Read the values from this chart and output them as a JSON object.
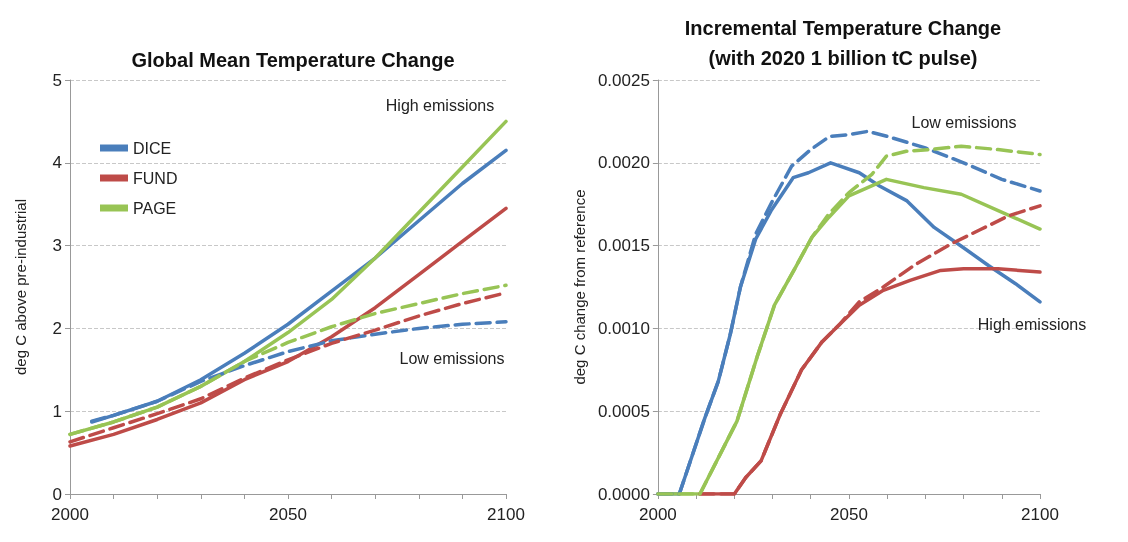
{
  "chart_data": [
    {
      "type": "line",
      "title": "Global Mean Temperature Change",
      "ylabel": "deg C above pre-industrial",
      "xlim": [
        2000,
        2100
      ],
      "xticks": [
        2000,
        {
          "value": 2010,
          "label": null
        },
        {
          "value": 2020,
          "label": null
        },
        {
          "value": 2030,
          "label": null
        },
        {
          "value": 2040,
          "label": null
        },
        2050,
        {
          "value": 2060,
          "label": null
        },
        {
          "value": 2070,
          "label": null
        },
        {
          "value": 2080,
          "label": null
        },
        {
          "value": 2090,
          "label": null
        },
        2100
      ],
      "ylim": [
        0,
        5
      ],
      "yticks": [
        0,
        1,
        2,
        3,
        4,
        5
      ],
      "grid": "y",
      "legend": "top left",
      "marker": "none",
      "annotations": [
        "High emissions",
        "Low emissions"
      ],
      "series": [
        {
          "name": "DICE",
          "color": "#4a7ebb",
          "line_style": "solid",
          "x": [
            2005,
            2010,
            2020,
            2030,
            2040,
            2050,
            2060,
            2070,
            2080,
            2090,
            2100
          ],
          "values": [
            0.87,
            0.95,
            1.12,
            1.38,
            1.7,
            2.05,
            2.45,
            2.85,
            3.3,
            3.75,
            4.15
          ]
        },
        {
          "name": "FUND",
          "color": "#be4b48",
          "line_style": "solid",
          "x": [
            2000,
            2010,
            2020,
            2030,
            2040,
            2050,
            2060,
            2070,
            2080,
            2090,
            2100
          ],
          "values": [
            0.58,
            0.72,
            0.9,
            1.1,
            1.38,
            1.6,
            1.9,
            2.25,
            2.65,
            3.05,
            3.45
          ]
        },
        {
          "name": "PAGE",
          "color": "#98c455",
          "line_style": "solid",
          "x": [
            2000,
            2010,
            2020,
            2030,
            2040,
            2050,
            2060,
            2070,
            2080,
            2090,
            2100
          ],
          "values": [
            0.72,
            0.87,
            1.05,
            1.3,
            1.6,
            1.95,
            2.35,
            2.85,
            3.4,
            3.95,
            4.5
          ]
        },
        {
          "color": "#4a7ebb",
          "line_style": "dashed",
          "x": [
            2005,
            2010,
            2020,
            2030,
            2040,
            2050,
            2060,
            2070,
            2080,
            2090,
            2100
          ],
          "values": [
            0.88,
            0.95,
            1.12,
            1.36,
            1.55,
            1.72,
            1.85,
            1.93,
            2.0,
            2.05,
            2.08
          ]
        },
        {
          "color": "#be4b48",
          "line_style": "dashed",
          "x": [
            2000,
            2010,
            2020,
            2030,
            2040,
            2050,
            2060,
            2070,
            2080,
            2090,
            2100
          ],
          "values": [
            0.63,
            0.8,
            0.97,
            1.15,
            1.4,
            1.62,
            1.82,
            1.98,
            2.15,
            2.3,
            2.43
          ]
        },
        {
          "color": "#98c455",
          "line_style": "dashed",
          "x": [
            2000,
            2010,
            2020,
            2030,
            2040,
            2050,
            2060,
            2070,
            2080,
            2090,
            2100
          ],
          "values": [
            0.72,
            0.87,
            1.05,
            1.3,
            1.6,
            1.83,
            2.02,
            2.18,
            2.3,
            2.42,
            2.52
          ]
        }
      ]
    },
    {
      "type": "line",
      "title": "Incremental Temperature Change\n(with 2020 1 billion tC pulse)",
      "ylabel": "deg C change from reference",
      "xlim": [
        2000,
        2100
      ],
      "xticks": [
        2000,
        {
          "value": 2010,
          "label": null
        },
        {
          "value": 2020,
          "label": null
        },
        {
          "value": 2030,
          "label": null
        },
        {
          "value": 2040,
          "label": null
        },
        2050,
        {
          "value": 2060,
          "label": null
        },
        {
          "value": 2070,
          "label": null
        },
        {
          "value": 2080,
          "label": null
        },
        {
          "value": 2090,
          "label": null
        },
        2100
      ],
      "ylim": [
        0,
        0.0025
      ],
      "yticks": [
        {
          "value": 0,
          "label": "0.0000"
        },
        {
          "value": 0.0005,
          "label": "0.0005"
        },
        {
          "value": 0.001,
          "label": "0.0010"
        },
        {
          "value": 0.0015,
          "label": "0.0015"
        },
        {
          "value": 0.002,
          "label": "0.0020"
        },
        {
          "value": 0.0025,
          "label": "0.0025"
        }
      ],
      "grid": "y",
      "marker": "none",
      "annotations": [
        "Low emissions",
        "High emissions"
      ],
      "series": [
        {
          "color": "#4a7ebb",
          "line_style": "solid",
          "x": [
            2000,
            2005.6,
            2012.3,
            2015.8,
            2018.9,
            2021.6,
            2025.6,
            2029.6,
            2035.4,
            2039.4,
            2045.2,
            2052.7,
            2058,
            2065.2,
            2072.3,
            2079.8,
            2086.5,
            2093.6,
            2100
          ],
          "values": [
            0,
            0,
            0.00046,
            0.00068,
            0.00096,
            0.00125,
            0.00154,
            0.00171,
            0.00191,
            0.00194,
            0.002,
            0.00194,
            0.00186,
            0.00177,
            0.00161,
            0.00149,
            0.00138,
            0.00127,
            0.00116
          ]
        },
        {
          "color": "#be4b48",
          "line_style": "solid",
          "x": [
            2011,
            2020,
            2023,
            2027,
            2032,
            2037.6,
            2043,
            2047.4,
            2052.7,
            2059,
            2066,
            2074,
            2080,
            2089,
            2100
          ],
          "values": [
            0,
            0,
            0.0001,
            0.0002,
            0.00048,
            0.00075,
            0.00092,
            0.00102,
            0.00114,
            0.00123,
            0.00129,
            0.00135,
            0.00136,
            0.00136,
            0.00134
          ]
        },
        {
          "color": "#98c455",
          "line_style": "solid",
          "x": [
            2000,
            2011,
            2020.7,
            2026,
            2030.5,
            2035.8,
            2040.3,
            2044.7,
            2050,
            2059.8,
            2069.6,
            2079.4,
            2089.2,
            2100
          ],
          "values": [
            0,
            0,
            0.00044,
            0.00083,
            0.00114,
            0.00136,
            0.00155,
            0.00167,
            0.0018,
            0.0019,
            0.00185,
            0.00181,
            0.00171,
            0.0016
          ]
        },
        {
          "color": "#4a7ebb",
          "line_style": "dashed",
          "x": [
            2000,
            2005.6,
            2012.3,
            2015.8,
            2018.9,
            2021.6,
            2025.6,
            2030,
            2035,
            2040,
            2045,
            2050,
            2055,
            2060,
            2070,
            2080,
            2090,
            2100
          ],
          "values": [
            0,
            0,
            0.00046,
            0.00068,
            0.00096,
            0.00125,
            0.00157,
            0.00177,
            0.00198,
            0.00208,
            0.00216,
            0.00217,
            0.00219,
            0.00216,
            0.00209,
            0.002,
            0.0019,
            0.00183
          ]
        },
        {
          "color": "#be4b48",
          "line_style": "dashed",
          "x": [
            2011,
            2020,
            2023,
            2027,
            2032,
            2037.6,
            2043,
            2047.4,
            2052.7,
            2059,
            2067,
            2076.7,
            2084.7,
            2091.8,
            2100
          ],
          "values": [
            0,
            0,
            0.0001,
            0.0002,
            0.00048,
            0.00075,
            0.00092,
            0.00102,
            0.00116,
            0.00125,
            0.00138,
            0.00151,
            0.0016,
            0.00168,
            0.00174
          ]
        },
        {
          "color": "#98c455",
          "line_style": "dashed",
          "x": [
            2000,
            2011,
            2020.7,
            2026,
            2030.5,
            2035.8,
            2040.3,
            2044.7,
            2050,
            2056,
            2059.8,
            2065,
            2071,
            2079.4,
            2089,
            2100
          ],
          "values": [
            0,
            0,
            0.00044,
            0.00083,
            0.00114,
            0.00136,
            0.00155,
            0.00169,
            0.00182,
            0.00193,
            0.00204,
            0.00207,
            0.00208,
            0.0021,
            0.00208,
            0.00205
          ]
        }
      ]
    }
  ]
}
